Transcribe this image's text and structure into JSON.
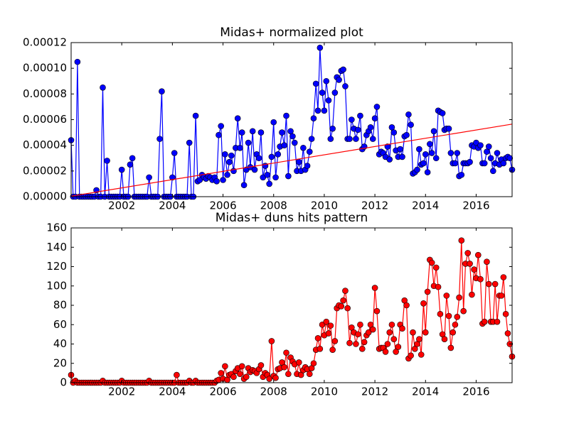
{
  "chart_data": [
    {
      "type": "line",
      "title": "Midas+ normalized plot",
      "xlim": [
        2000,
        2017.42
      ],
      "xticks": [
        2002,
        2004,
        2006,
        2008,
        2010,
        2012,
        2014,
        2016
      ],
      "ylim": [
        0,
        0.00012
      ],
      "yticks": [
        {
          "value": 0,
          "label": "0.00000"
        },
        {
          "value": 2e-05,
          "label": "0.00002"
        },
        {
          "value": 4e-05,
          "label": "0.00004"
        },
        {
          "value": 6e-05,
          "label": "0.00006"
        },
        {
          "value": 8e-05,
          "label": "0.00008"
        },
        {
          "value": 0.0001,
          "label": "0.00010"
        },
        {
          "value": 0.00012,
          "label": "0.00012"
        }
      ],
      "series": [
        {
          "color": "#0000ff",
          "marker": true,
          "x": [
            2000,
            2000.08,
            2000.17,
            2000.25,
            2000.33,
            2000.42,
            2000.5,
            2000.58,
            2000.67,
            2000.75,
            2000.83,
            2000.92,
            2001,
            2001.08,
            2001.17,
            2001.25,
            2001.33,
            2001.42,
            2001.5,
            2001.58,
            2001.67,
            2001.75,
            2001.83,
            2001.92,
            2002,
            2002.08,
            2002.17,
            2002.25,
            2002.33,
            2002.42,
            2002.5,
            2002.58,
            2002.67,
            2002.75,
            2002.83,
            2002.92,
            2003,
            2003.08,
            2003.17,
            2003.25,
            2003.33,
            2003.42,
            2003.5,
            2003.58,
            2003.67,
            2003.75,
            2003.83,
            2003.92,
            2004,
            2004.08,
            2004.17,
            2004.25,
            2004.33,
            2004.42,
            2004.5,
            2004.58,
            2004.67,
            2004.75,
            2004.83,
            2004.92,
            2005,
            2005.08,
            2005.17,
            2005.25,
            2005.33,
            2005.42,
            2005.5,
            2005.58,
            2005.67,
            2005.75,
            2005.83,
            2005.92,
            2006,
            2006.08,
            2006.17,
            2006.25,
            2006.33,
            2006.42,
            2006.5,
            2006.58,
            2006.67,
            2006.75,
            2006.83,
            2006.92,
            2007,
            2007.08,
            2007.17,
            2007.25,
            2007.33,
            2007.42,
            2007.5,
            2007.58,
            2007.67,
            2007.75,
            2007.83,
            2007.92,
            2008,
            2008.08,
            2008.17,
            2008.25,
            2008.33,
            2008.42,
            2008.5,
            2008.58,
            2008.67,
            2008.75,
            2008.83,
            2008.92,
            2009,
            2009.08,
            2009.17,
            2009.25,
            2009.33,
            2009.42,
            2009.5,
            2009.58,
            2009.67,
            2009.75,
            2009.83,
            2009.92,
            2010,
            2010.08,
            2010.17,
            2010.25,
            2010.33,
            2010.42,
            2010.5,
            2010.58,
            2010.67,
            2010.75,
            2010.83,
            2010.92,
            2011,
            2011.08,
            2011.17,
            2011.25,
            2011.33,
            2011.42,
            2011.5,
            2011.58,
            2011.67,
            2011.75,
            2011.83,
            2011.92,
            2012,
            2012.08,
            2012.17,
            2012.25,
            2012.33,
            2012.42,
            2012.5,
            2012.58,
            2012.67,
            2012.75,
            2012.83,
            2012.92,
            2013,
            2013.08,
            2013.17,
            2013.25,
            2013.33,
            2013.42,
            2013.5,
            2013.58,
            2013.67,
            2013.75,
            2013.83,
            2013.92,
            2014,
            2014.08,
            2014.17,
            2014.25,
            2014.33,
            2014.42,
            2014.5,
            2014.58,
            2014.67,
            2014.75,
            2014.83,
            2014.92,
            2015,
            2015.08,
            2015.17,
            2015.25,
            2015.33,
            2015.42,
            2015.5,
            2015.58,
            2015.67,
            2015.75,
            2015.83,
            2015.92,
            2016,
            2016.08,
            2016.17,
            2016.25,
            2016.33,
            2016.42,
            2016.5,
            2016.58,
            2016.67,
            2016.75,
            2016.83,
            2016.92,
            2017,
            2017.08,
            2017.17,
            2017.25,
            2017.33,
            2017.42
          ],
          "values": [
            4.4e-05,
            0,
            0,
            0.000105,
            0,
            0,
            0,
            0,
            0,
            0,
            0,
            0,
            5e-06,
            0,
            0,
            8.5e-05,
            0,
            2.8e-05,
            0,
            0,
            0,
            0,
            0,
            0,
            2.1e-05,
            0,
            0,
            0,
            2.5e-05,
            3e-05,
            0,
            0,
            0,
            0,
            0,
            0,
            0,
            1.5e-05,
            0,
            0,
            0,
            0,
            4.5e-05,
            8.2e-05,
            0,
            0,
            0,
            0,
            1.5e-05,
            3.4e-05,
            0,
            0,
            0,
            0,
            0,
            0,
            4.2e-05,
            0,
            0,
            6.3e-05,
            1.2e-05,
            1.3e-05,
            1.7e-05,
            1.5e-05,
            1.4e-05,
            1.6e-05,
            1.5e-05,
            1.3e-05,
            1.5e-05,
            1.2e-05,
            4.8e-05,
            5.5e-05,
            1.3e-05,
            3.3e-05,
            1.7e-05,
            2.7e-05,
            3.2e-05,
            2e-05,
            3.8e-05,
            6.1e-05,
            3.8e-05,
            5e-05,
            9e-06,
            2.1e-05,
            4.2e-05,
            2.3e-05,
            5.1e-05,
            2.1e-05,
            3.3e-05,
            3e-05,
            5e-05,
            1.5e-05,
            2.4e-05,
            1.7e-05,
            1e-05,
            3.1e-05,
            5.8e-05,
            1.5e-05,
            3.3e-05,
            3.9e-05,
            5e-05,
            4e-05,
            6.3e-05,
            1.6e-05,
            5.1e-05,
            4.7e-05,
            4.2e-05,
            2e-05,
            2.7e-05,
            2e-05,
            3.8e-05,
            2.1e-05,
            2.4e-05,
            3.5e-05,
            4.5e-05,
            6.1e-05,
            8.8e-05,
            6.7e-05,
            0.000116,
            8.1e-05,
            6.7e-05,
            9e-05,
            7.5e-05,
            4.5e-05,
            5.3e-05,
            8.1e-05,
            9.3e-05,
            9.1e-05,
            9.8e-05,
            9.9e-05,
            8.6e-05,
            4.5e-05,
            4.5e-05,
            6e-05,
            5.3e-05,
            4.5e-05,
            5.2e-05,
            6.3e-05,
            3.7e-05,
            3.9e-05,
            4.8e-05,
            5.1e-05,
            5.4e-05,
            4.5e-05,
            6.1e-05,
            7e-05,
            3.3e-05,
            3.5e-05,
            3.4e-05,
            3.1e-05,
            3.9e-05,
            2.9e-05,
            5.4e-05,
            5e-05,
            3.6e-05,
            3.1e-05,
            3.7e-05,
            3.1e-05,
            4.7e-05,
            4.8e-05,
            6.4e-05,
            5.6e-05,
            1.8e-05,
            1.9e-05,
            2.1e-05,
            3.7e-05,
            2.5e-05,
            2.6e-05,
            3.3e-05,
            1.9e-05,
            4.1e-05,
            3.4e-05,
            5.1e-05,
            3e-05,
            6.7e-05,
            6.6e-05,
            6.5e-05,
            5.2e-05,
            5.3e-05,
            5.3e-05,
            3.4e-05,
            2.6e-05,
            2.6e-05,
            3.4e-05,
            1.6e-05,
            1.7e-05,
            2.6e-05,
            2.6e-05,
            2.6e-05,
            2.7e-05,
            4e-05,
            3.9e-05,
            4.2e-05,
            3.8e-05,
            4e-05,
            2.6e-05,
            2.6e-05,
            3.5e-05,
            3.9e-05,
            3e-05,
            2e-05,
            2.6e-05,
            3.4e-05,
            2.5e-05,
            2.9e-05,
            2.6e-05,
            3e-05,
            3.1e-05,
            3e-05,
            2.1e-05
          ]
        },
        {
          "color": "#ff0000",
          "marker": false,
          "x": [
            2000,
            2017.42
          ],
          "values": [
            4e-07,
            5.65e-05
          ]
        }
      ]
    },
    {
      "type": "line",
      "title": "Midas+ duns hits pattern",
      "xlim": [
        2000,
        2017.42
      ],
      "xticks": [
        2002,
        2004,
        2006,
        2008,
        2010,
        2012,
        2014,
        2016
      ],
      "ylim": [
        0,
        160
      ],
      "yticks": [
        0,
        20,
        40,
        60,
        80,
        100,
        120,
        140,
        160
      ],
      "series": [
        {
          "color": "#ff0000",
          "marker": true,
          "x": [
            2000,
            2000.08,
            2000.17,
            2000.25,
            2000.33,
            2000.42,
            2000.5,
            2000.58,
            2000.67,
            2000.75,
            2000.83,
            2000.92,
            2001,
            2001.08,
            2001.17,
            2001.25,
            2001.33,
            2001.42,
            2001.5,
            2001.58,
            2001.67,
            2001.75,
            2001.83,
            2001.92,
            2002,
            2002.08,
            2002.17,
            2002.25,
            2002.33,
            2002.42,
            2002.5,
            2002.58,
            2002.67,
            2002.75,
            2002.83,
            2002.92,
            2003,
            2003.08,
            2003.17,
            2003.25,
            2003.33,
            2003.42,
            2003.5,
            2003.58,
            2003.67,
            2003.75,
            2003.83,
            2003.92,
            2004,
            2004.08,
            2004.17,
            2004.25,
            2004.33,
            2004.42,
            2004.5,
            2004.58,
            2004.67,
            2004.75,
            2004.83,
            2004.92,
            2005,
            2005.08,
            2005.17,
            2005.25,
            2005.33,
            2005.42,
            2005.5,
            2005.58,
            2005.67,
            2005.75,
            2005.83,
            2005.92,
            2006,
            2006.08,
            2006.17,
            2006.25,
            2006.33,
            2006.42,
            2006.5,
            2006.58,
            2006.67,
            2006.75,
            2006.83,
            2006.92,
            2007,
            2007.08,
            2007.17,
            2007.25,
            2007.33,
            2007.42,
            2007.5,
            2007.58,
            2007.67,
            2007.75,
            2007.83,
            2007.92,
            2008,
            2008.08,
            2008.17,
            2008.25,
            2008.33,
            2008.42,
            2008.5,
            2008.58,
            2008.67,
            2008.75,
            2008.83,
            2008.92,
            2009,
            2009.08,
            2009.17,
            2009.25,
            2009.33,
            2009.42,
            2009.5,
            2009.58,
            2009.67,
            2009.75,
            2009.83,
            2009.92,
            2010,
            2010.08,
            2010.17,
            2010.25,
            2010.33,
            2010.42,
            2010.5,
            2010.58,
            2010.67,
            2010.75,
            2010.83,
            2010.92,
            2011,
            2011.08,
            2011.17,
            2011.25,
            2011.33,
            2011.42,
            2011.5,
            2011.58,
            2011.67,
            2011.75,
            2011.83,
            2011.92,
            2012,
            2012.08,
            2012.17,
            2012.25,
            2012.33,
            2012.42,
            2012.5,
            2012.58,
            2012.67,
            2012.75,
            2012.83,
            2012.92,
            2013,
            2013.08,
            2013.17,
            2013.25,
            2013.33,
            2013.42,
            2013.5,
            2013.58,
            2013.67,
            2013.75,
            2013.83,
            2013.92,
            2014,
            2014.08,
            2014.17,
            2014.25,
            2014.33,
            2014.42,
            2014.5,
            2014.58,
            2014.67,
            2014.75,
            2014.83,
            2014.92,
            2015,
            2015.08,
            2015.17,
            2015.25,
            2015.33,
            2015.42,
            2015.5,
            2015.58,
            2015.67,
            2015.75,
            2015.83,
            2015.92,
            2016,
            2016.08,
            2016.17,
            2016.25,
            2016.33,
            2016.42,
            2016.5,
            2016.58,
            2016.67,
            2016.75,
            2016.83,
            2016.92,
            2017,
            2017.08,
            2017.17,
            2017.25,
            2017.33,
            2017.42
          ],
          "values": [
            8,
            0,
            2,
            0,
            0,
            0,
            0,
            0,
            0,
            0,
            0,
            0,
            0,
            0,
            0,
            2,
            0,
            0,
            0,
            0,
            0,
            0,
            0,
            0,
            2,
            0,
            0,
            0,
            0,
            0,
            0,
            0,
            0,
            0,
            0,
            0,
            0,
            2,
            0,
            0,
            0,
            0,
            0,
            0,
            0,
            0,
            0,
            0,
            0,
            0,
            8,
            0,
            0,
            0,
            0,
            0,
            2,
            0,
            0,
            2,
            0,
            0,
            0,
            0,
            0,
            0,
            0,
            0,
            0,
            2,
            3,
            10,
            4,
            17,
            3,
            8,
            9,
            6,
            12,
            15,
            9,
            17,
            4,
            6,
            15,
            11,
            13,
            12,
            10,
            14,
            18,
            6,
            10,
            8,
            4,
            43,
            7,
            5,
            14,
            15,
            21,
            16,
            31,
            9,
            26,
            22,
            19,
            9,
            21,
            8,
            13,
            16,
            14,
            9,
            15,
            20,
            34,
            46,
            35,
            60,
            49,
            63,
            51,
            59,
            34,
            43,
            77,
            80,
            79,
            85,
            95,
            77,
            41,
            57,
            52,
            40,
            50,
            60,
            35,
            42,
            49,
            52,
            60,
            55,
            98,
            74,
            35,
            36,
            36,
            32,
            40,
            52,
            60,
            45,
            32,
            37,
            60,
            56,
            85,
            80,
            25,
            28,
            52,
            35,
            40,
            45,
            29,
            82,
            52,
            94,
            127,
            124,
            100,
            119,
            99,
            71,
            50,
            45,
            90,
            69,
            36,
            52,
            60,
            68,
            88,
            147,
            74,
            123,
            134,
            123,
            91,
            117,
            108,
            132,
            107,
            61,
            63,
            125,
            102,
            63,
            63,
            102,
            63,
            90,
            90,
            109,
            71,
            51,
            40,
            27
          ]
        }
      ]
    }
  ]
}
